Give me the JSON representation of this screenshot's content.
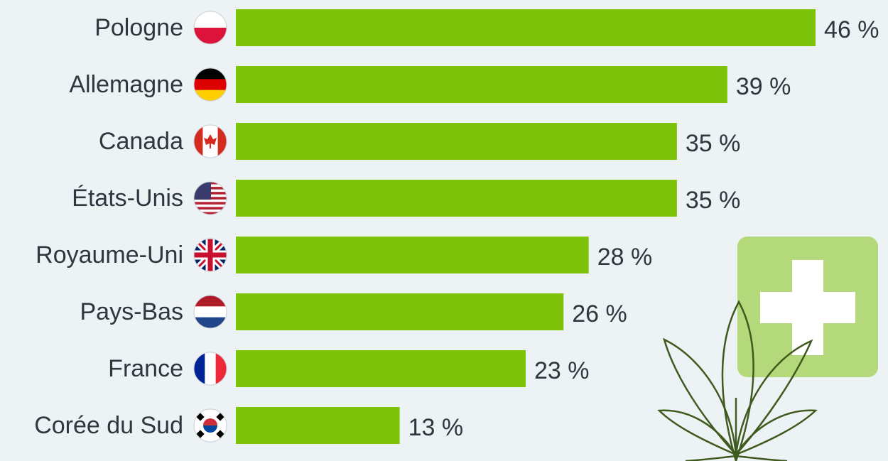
{
  "chart_data": {
    "type": "bar",
    "orientation": "horizontal",
    "categories": [
      "Pologne",
      "Allemagne",
      "Canada",
      "États-Unis",
      "Royaume-Uni",
      "Pays-Bas",
      "France",
      "Corée du Sud"
    ],
    "values": [
      46,
      39,
      35,
      35,
      28,
      26,
      23,
      13
    ],
    "value_labels": [
      "46 %",
      "39 %",
      "35 %",
      "35 %",
      "28 %",
      "26 %",
      "23 %",
      "13 %"
    ],
    "color": "#7dc30a"
  }
}
